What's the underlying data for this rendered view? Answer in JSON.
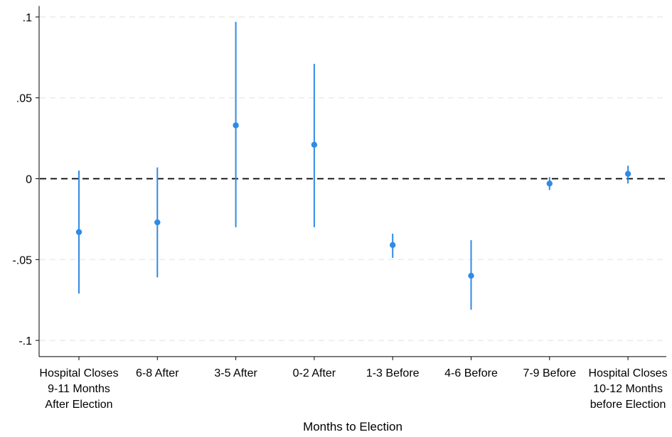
{
  "chart_data": {
    "type": "scatter",
    "subtype": "coefficient plot with confidence intervals",
    "title": "",
    "xlabel": "Months to Election",
    "ylabel": "",
    "ylim": [
      -0.11,
      0.105
    ],
    "yticks": [
      {
        "value": -0.1,
        "label": "-.1"
      },
      {
        "value": -0.05,
        "label": "-.05"
      },
      {
        "value": 0,
        "label": "0"
      },
      {
        "value": 0.05,
        "label": ".05"
      },
      {
        "value": 0.1,
        "label": ".1"
      }
    ],
    "grid": "horizontal dashed",
    "reference_line": {
      "y": 0,
      "style": "dashed"
    },
    "categories": [
      [
        "Hospital Closes",
        "9-11 Months",
        "After Election"
      ],
      [
        "6-8 After"
      ],
      [
        "3-5 After"
      ],
      [
        "0-2 After"
      ],
      [
        "1-3 Before"
      ],
      [
        "4-6 Before"
      ],
      [
        "7-9 Before"
      ],
      [
        "Hospital Closes",
        "10-12 Months",
        "before Election"
      ]
    ],
    "points": [
      {
        "estimate": -0.033,
        "lower": -0.071,
        "upper": 0.005
      },
      {
        "estimate": -0.027,
        "lower": -0.061,
        "upper": 0.007
      },
      {
        "estimate": 0.033,
        "lower": -0.03,
        "upper": 0.097
      },
      {
        "estimate": 0.021,
        "lower": -0.03,
        "upper": 0.071
      },
      {
        "estimate": -0.041,
        "lower": -0.049,
        "upper": -0.034
      },
      {
        "estimate": -0.06,
        "lower": -0.081,
        "upper": -0.038
      },
      {
        "estimate": -0.003,
        "lower": -0.007,
        "upper": 0.001
      },
      {
        "estimate": 0.003,
        "lower": -0.003,
        "upper": 0.008
      }
    ],
    "colors": {
      "marker": "#2f8be6",
      "grid": "#e6e6e6",
      "reference": "#000000",
      "axis": "#000000"
    }
  }
}
